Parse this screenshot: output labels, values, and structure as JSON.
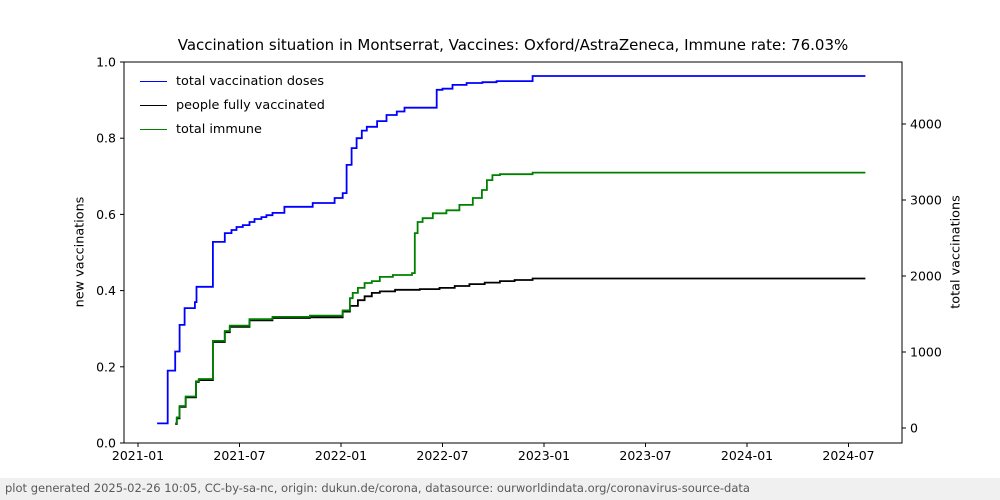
{
  "title": "Vaccination situation in Montserrat, Vaccines: Oxford/AstraZeneca, Immune rate: 76.03%",
  "footer": "plot generated 2025-02-26 10:05, CC-by-sa-nc, origin: dukun.de/corona, datasource: ourworldindata.org/coronavirus-source-data",
  "chart_data": {
    "type": "line",
    "step_interpolation": true,
    "title": "Vaccination situation in Montserrat, Vaccines: Oxford/AstraZeneca, Immune rate: 76.03%",
    "xlabel": "",
    "ylabel_left": "new vaccinations",
    "ylabel_right": "total vaccinations",
    "x_tick_labels": [
      "2021-01",
      "2021-07",
      "2022-01",
      "2022-07",
      "2023-01",
      "2023-07",
      "2024-01",
      "2024-07"
    ],
    "y_left_tick_labels": [
      "0.0",
      "0.2",
      "0.4",
      "0.6",
      "0.8",
      "1.0"
    ],
    "y_left_tick_values": [
      0.0,
      0.2,
      0.4,
      0.6,
      0.8,
      1.0
    ],
    "y_left_range": [
      0.0,
      1.0
    ],
    "y_right_tick_labels": [
      "0",
      "1000",
      "2000",
      "3000",
      "4000"
    ],
    "y_right_tick_values": [
      0,
      1000,
      2000,
      3000,
      4000
    ],
    "x_range": [
      "2020-12-07",
      "2024-10-07"
    ],
    "grid": false,
    "legend_position": "upper left",
    "legend_frame": false,
    "series": [
      {
        "name": "total vaccination doses",
        "color": "#0000ff",
        "axis": "right",
        "points": [
          [
            "2021-02-05",
            60
          ],
          [
            "2021-02-24",
            755
          ],
          [
            "2021-03-07",
            1006
          ],
          [
            "2021-03-15",
            1357
          ],
          [
            "2021-03-24",
            1577
          ],
          [
            "2021-04-12",
            1657
          ],
          [
            "2021-04-15",
            1858
          ],
          [
            "2021-05-14",
            2449
          ],
          [
            "2021-06-05",
            2565
          ],
          [
            "2021-06-17",
            2605
          ],
          [
            "2021-06-26",
            2645
          ],
          [
            "2021-07-07",
            2670
          ],
          [
            "2021-07-19",
            2710
          ],
          [
            "2021-07-28",
            2750
          ],
          [
            "2021-08-10",
            2775
          ],
          [
            "2021-08-19",
            2800
          ],
          [
            "2021-08-30",
            2830
          ],
          [
            "2021-09-21",
            2911
          ],
          [
            "2021-11-11",
            2961
          ],
          [
            "2021-12-20",
            3026
          ],
          [
            "2022-01-04",
            3091
          ],
          [
            "2022-01-11",
            3462
          ],
          [
            "2022-01-20",
            3683
          ],
          [
            "2022-01-29",
            3813
          ],
          [
            "2022-02-08",
            3913
          ],
          [
            "2022-02-17",
            3963
          ],
          [
            "2022-03-05",
            4038
          ],
          [
            "2022-03-22",
            4119
          ],
          [
            "2022-04-10",
            4164
          ],
          [
            "2022-04-24",
            4214
          ],
          [
            "2022-06-21",
            4450
          ],
          [
            "2022-07-01",
            4465
          ],
          [
            "2022-07-19",
            4515
          ],
          [
            "2022-08-14",
            4540
          ],
          [
            "2022-09-12",
            4550
          ],
          [
            "2022-10-07",
            4565
          ],
          [
            "2022-12-11",
            4631
          ],
          [
            "2024-08-01",
            4631
          ]
        ]
      },
      {
        "name": "people fully vaccinated",
        "color": "#000000",
        "axis": "right",
        "points": [
          [
            "2021-03-07",
            53
          ],
          [
            "2021-03-10",
            128
          ],
          [
            "2021-03-15",
            279
          ],
          [
            "2021-03-26",
            404
          ],
          [
            "2021-04-14",
            605
          ],
          [
            "2021-04-19",
            630
          ],
          [
            "2021-05-14",
            1131
          ],
          [
            "2021-06-05",
            1261
          ],
          [
            "2021-06-14",
            1331
          ],
          [
            "2021-07-19",
            1417
          ],
          [
            "2021-08-30",
            1447
          ],
          [
            "2021-11-06",
            1457
          ],
          [
            "2022-01-04",
            1532
          ],
          [
            "2022-01-17",
            1607
          ],
          [
            "2022-02-01",
            1682
          ],
          [
            "2022-02-13",
            1733
          ],
          [
            "2022-02-26",
            1778
          ],
          [
            "2022-03-10",
            1798
          ],
          [
            "2022-04-07",
            1818
          ],
          [
            "2022-05-21",
            1828
          ],
          [
            "2022-06-26",
            1843
          ],
          [
            "2022-07-23",
            1868
          ],
          [
            "2022-08-19",
            1893
          ],
          [
            "2022-09-16",
            1913
          ],
          [
            "2022-10-13",
            1933
          ],
          [
            "2022-11-09",
            1948
          ],
          [
            "2022-12-11",
            1967
          ],
          [
            "2024-08-01",
            1967
          ]
        ]
      },
      {
        "name": "total immune",
        "color": "#008000",
        "axis": "right",
        "points": [
          [
            "2021-03-07",
            60
          ],
          [
            "2021-03-10",
            140
          ],
          [
            "2021-03-15",
            290
          ],
          [
            "2021-03-26",
            415
          ],
          [
            "2021-04-14",
            615
          ],
          [
            "2021-04-19",
            645
          ],
          [
            "2021-05-14",
            1146
          ],
          [
            "2021-06-05",
            1276
          ],
          [
            "2021-06-14",
            1346
          ],
          [
            "2021-07-19",
            1432
          ],
          [
            "2021-08-30",
            1462
          ],
          [
            "2021-11-06",
            1477
          ],
          [
            "2022-01-04",
            1547
          ],
          [
            "2022-01-17",
            1708
          ],
          [
            "2022-01-22",
            1778
          ],
          [
            "2022-02-01",
            1843
          ],
          [
            "2022-02-13",
            1908
          ],
          [
            "2022-02-26",
            1933
          ],
          [
            "2022-03-10",
            1988
          ],
          [
            "2022-04-03",
            2013
          ],
          [
            "2022-05-07",
            2038
          ],
          [
            "2022-05-12",
            2565
          ],
          [
            "2022-05-17",
            2710
          ],
          [
            "2022-05-26",
            2760
          ],
          [
            "2022-06-14",
            2825
          ],
          [
            "2022-07-08",
            2865
          ],
          [
            "2022-08-01",
            2936
          ],
          [
            "2022-08-25",
            3026
          ],
          [
            "2022-09-11",
            3131
          ],
          [
            "2022-09-20",
            3262
          ],
          [
            "2022-09-30",
            3327
          ],
          [
            "2022-10-13",
            3340
          ],
          [
            "2022-12-11",
            3361
          ],
          [
            "2024-08-01",
            3361
          ]
        ]
      }
    ]
  }
}
